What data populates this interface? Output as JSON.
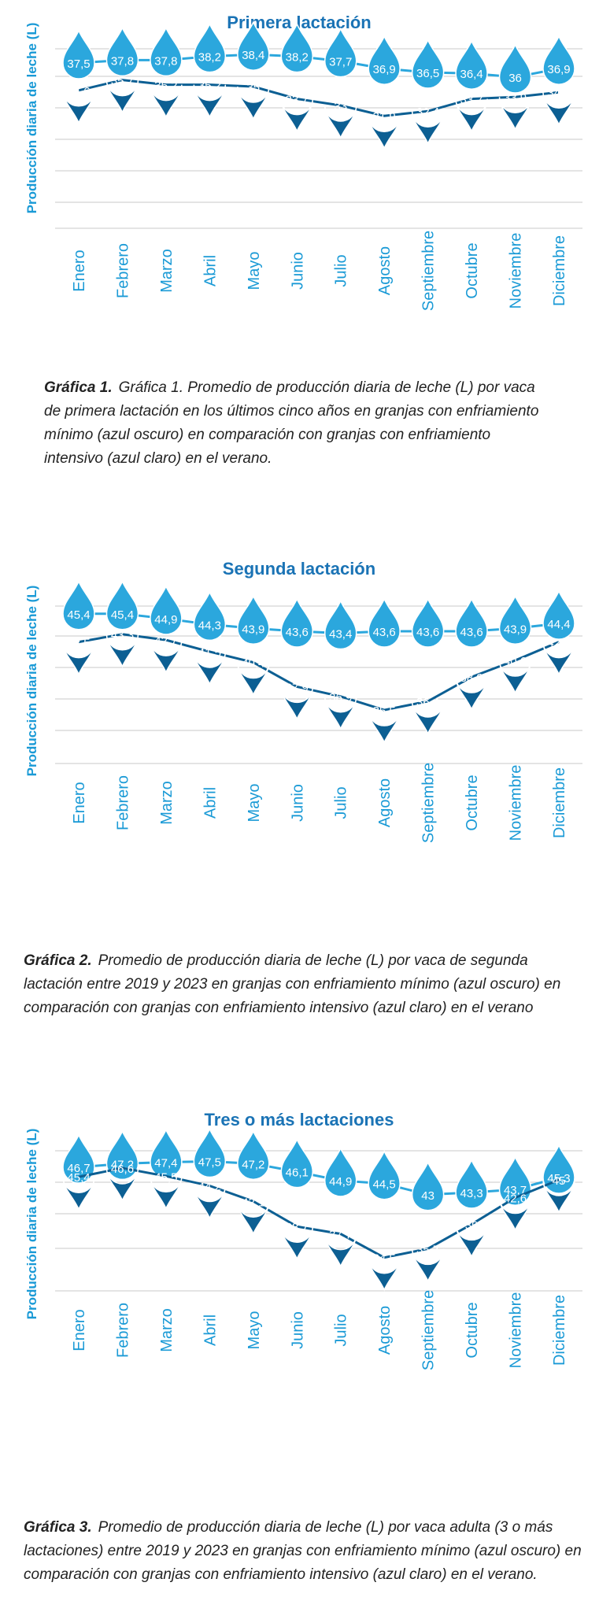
{
  "colors": {
    "title": "#1a73b5",
    "axis_text": "#1a9ad6",
    "light": "#2ba7dd",
    "dark": "#0c5f93",
    "grid": "#c9c9c9",
    "caption": "#222222"
  },
  "months": [
    "Enero",
    "Febrero",
    "Marzo",
    "Abril",
    "Mayo",
    "Junio",
    "Julio",
    "Agosto",
    "Septiembre",
    "Octubre",
    "Noviembre",
    "Diciembre"
  ],
  "charts": [
    {
      "title": "Primera lactación",
      "ylabel": "Producción diaria de leche (L)",
      "caption_label": "Gráfica 1.",
      "caption_text": "Gráfica 1. Promedio de producción diaria de leche (L) por vaca de primera lactación en los últimos cinco años en granjas con enfriamiento mínimo (azul oscuro) en comparación con granjas con enfriamiento intensivo (azul claro) en el verano."
    },
    {
      "title": "Segunda lactación",
      "ylabel": "Producción diaria de leche (L)",
      "caption_label": "Gráfica 2.",
      "caption_text": "Promedio de producción diaria de leche (L) por vaca de segunda lactación entre 2019 y 2023 en granjas con enfriamiento mínimo (azul oscuro) en comparación con granjas con enfriamiento intensivo (azul claro) en el verano"
    },
    {
      "title": "Tres o más lactaciones",
      "ylabel": "Producción diaria de leche (L)",
      "caption_label": "Gráfica 3.",
      "caption_text": "Promedio de producción diaria de leche (L) por vaca adulta (3 o más lactaciones) entre 2019 y 2023 en granjas con enfriamiento mínimo (azul oscuro) en comparación con granjas con enfriamiento intensivo (azul claro) en el verano."
    }
  ],
  "chart_data": [
    {
      "type": "line",
      "title": "Primera lactación",
      "xlabel": "",
      "ylabel": "Producción diaria de leche (L)",
      "categories": [
        "Enero",
        "Febrero",
        "Marzo",
        "Abril",
        "Mayo",
        "Junio",
        "Julio",
        "Agosto",
        "Septiembre",
        "Octubre",
        "Noviembre",
        "Diciembre"
      ],
      "ylim": [
        20,
        40
      ],
      "grid": true,
      "series": [
        {
          "color": "#2ba7dd",
          "marker": "drop-up",
          "values_text": [
            "37,5",
            "37,8",
            "37,8",
            "38,2",
            "38,4",
            "38,2",
            "37,7",
            "36,9",
            "36,5",
            "36,4",
            "36",
            "36,9"
          ],
          "values": [
            37.5,
            37.8,
            37.8,
            38.2,
            38.4,
            38.2,
            37.7,
            36.9,
            36.5,
            36.4,
            36.0,
            36.9
          ]
        },
        {
          "color": "#0c5f93",
          "marker": "drop-down",
          "values_text": [
            "34,6",
            "35,7",
            "35,2",
            "35,2",
            "35",
            "33,7",
            "33",
            "31,9",
            "32,4",
            "33,7",
            "33,9",
            "34,4"
          ],
          "values": [
            34.6,
            35.7,
            35.2,
            35.2,
            35.0,
            33.7,
            33.0,
            31.9,
            32.4,
            33.7,
            33.9,
            34.4
          ]
        }
      ]
    },
    {
      "type": "line",
      "title": "Segunda lactación",
      "xlabel": "",
      "ylabel": "Producción diaria de leche (L)",
      "categories": [
        "Enero",
        "Febrero",
        "Marzo",
        "Abril",
        "Mayo",
        "Junio",
        "Julio",
        "Agosto",
        "Septiembre",
        "Octubre",
        "Noviembre",
        "Diciembre"
      ],
      "ylim": [
        30,
        47
      ],
      "grid": true,
      "series": [
        {
          "color": "#2ba7dd",
          "marker": "drop-up",
          "values_text": [
            "45,4",
            "45,4",
            "44,9",
            "44,3",
            "43,9",
            "43,6",
            "43,4",
            "43,6",
            "43,6",
            "43,6",
            "43,9",
            "44,4"
          ],
          "values": [
            45.4,
            45.4,
            44.9,
            44.3,
            43.9,
            43.6,
            43.4,
            43.6,
            43.6,
            43.6,
            43.9,
            44.4
          ]
        },
        {
          "color": "#0c5f93",
          "marker": "drop-down",
          "values_text": [
            "42,5",
            "43,3",
            "42,7",
            "41,5",
            "40,4",
            "37,9",
            "36,9",
            "35,5",
            "36,4",
            "38,9",
            "40,6",
            "42,5"
          ],
          "values": [
            42.5,
            43.3,
            42.7,
            41.5,
            40.4,
            37.9,
            36.9,
            35.5,
            36.4,
            38.9,
            40.6,
            42.5
          ]
        }
      ]
    },
    {
      "type": "line",
      "title": "Tres o más lactaciones",
      "xlabel": "",
      "ylabel": "Producción diaria de leche (L)",
      "categories": [
        "Enero",
        "Febrero",
        "Marzo",
        "Abril",
        "Mayo",
        "Junio",
        "Julio",
        "Agosto",
        "Septiembre",
        "Octubre",
        "Noviembre",
        "Diciembre"
      ],
      "ylim": [
        30,
        50
      ],
      "grid": true,
      "series": [
        {
          "color": "#2ba7dd",
          "marker": "drop-up",
          "values_text": [
            "46,7",
            "47,2",
            "47,4",
            "47,5",
            "47,2",
            "46,1",
            "44,9",
            "44,5",
            "43",
            "43,3",
            "43,7",
            "45,3"
          ],
          "values": [
            46.7,
            47.2,
            47.4,
            47.5,
            47.2,
            46.1,
            44.9,
            44.5,
            43.0,
            43.3,
            43.7,
            45.3
          ]
        },
        {
          "color": "#0c5f93",
          "marker": "drop-down",
          "values_text": [
            "45,4",
            "46,6",
            "45,5",
            "44,2",
            "42,1",
            "38,7",
            "37,7",
            "34,5",
            "35,7",
            "39",
            "42,6",
            "45"
          ],
          "values": [
            45.4,
            46.6,
            45.5,
            44.2,
            42.1,
            38.7,
            37.7,
            34.5,
            35.7,
            39.0,
            42.6,
            45.0
          ]
        }
      ]
    }
  ]
}
